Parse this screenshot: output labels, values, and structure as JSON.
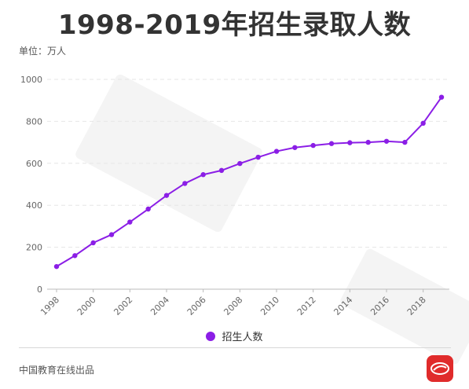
{
  "header": {
    "title": "1998-2019年招生录取人数",
    "unit": "单位：万人"
  },
  "footer": {
    "credit": "中国教育在线出品"
  },
  "colors": {
    "series": "#8b1ee6",
    "grid": "#e6e6e6",
    "axis_text": "#666666",
    "logo_bg": "#e02b2b"
  },
  "chart_data": {
    "type": "line",
    "title": "1998-2019年招生录取人数",
    "xlabel": "",
    "ylabel": "单位：万人",
    "x": [
      1998,
      1999,
      2000,
      2001,
      2002,
      2003,
      2004,
      2005,
      2006,
      2007,
      2008,
      2009,
      2010,
      2011,
      2012,
      2013,
      2014,
      2015,
      2016,
      2017,
      2018,
      2019
    ],
    "x_tick_labels": [
      "1998",
      "2000",
      "2002",
      "2004",
      "2006",
      "2008",
      "2010",
      "2012",
      "2014",
      "2016",
      "2018"
    ],
    "ylim": [
      0,
      1000
    ],
    "y_ticks": [
      0,
      200,
      400,
      600,
      800,
      1000
    ],
    "grid": true,
    "legend_position": "bottom",
    "series": [
      {
        "name": "招生人数",
        "values": [
          108,
          160,
          221,
          260,
          320,
          382,
          447,
          504,
          546,
          566,
          599,
          629,
          657,
          675,
          685,
          694,
          698,
          700,
          705,
          700,
          791,
          915
        ]
      }
    ]
  }
}
